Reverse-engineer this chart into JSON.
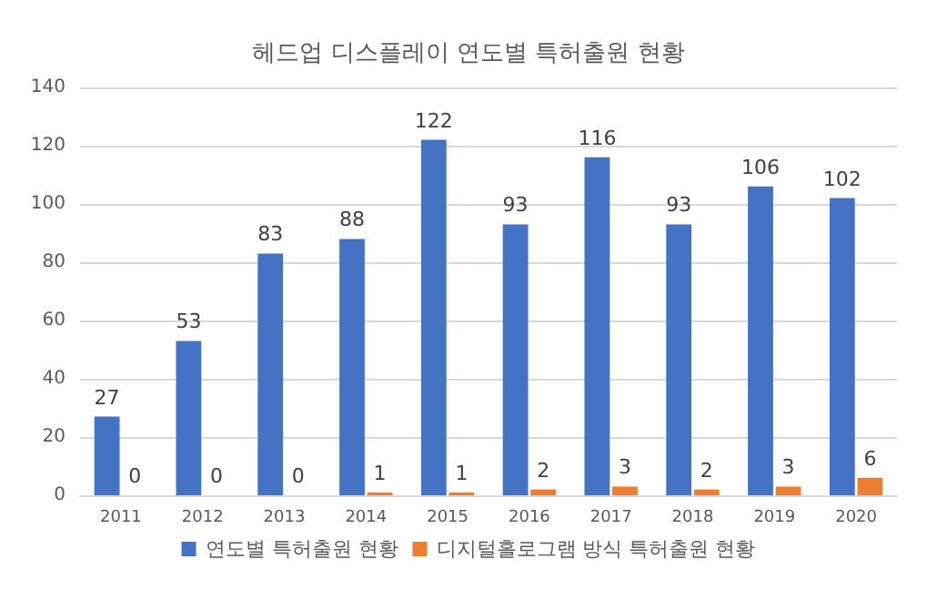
{
  "chart_data": {
    "type": "bar",
    "title": "헤드업 디스플레이 연도별 특허출원 현황",
    "categories": [
      "2011",
      "2012",
      "2013",
      "2014",
      "2015",
      "2016",
      "2017",
      "2018",
      "2019",
      "2020"
    ],
    "series": [
      {
        "name": "연도별 특허출원 현황",
        "color": "#4472c4",
        "values": [
          27,
          53,
          83,
          88,
          122,
          93,
          116,
          93,
          106,
          102
        ]
      },
      {
        "name": "디지털홀로그램 방식 특허출원 현황",
        "color": "#ed7d31",
        "values": [
          0,
          0,
          0,
          1,
          1,
          2,
          3,
          2,
          3,
          6
        ]
      }
    ],
    "ylim": [
      0,
      140
    ],
    "yticks": [
      0,
      20,
      40,
      60,
      80,
      100,
      120,
      140
    ],
    "grid": "y",
    "legend": "bottom",
    "data_labels": true
  }
}
